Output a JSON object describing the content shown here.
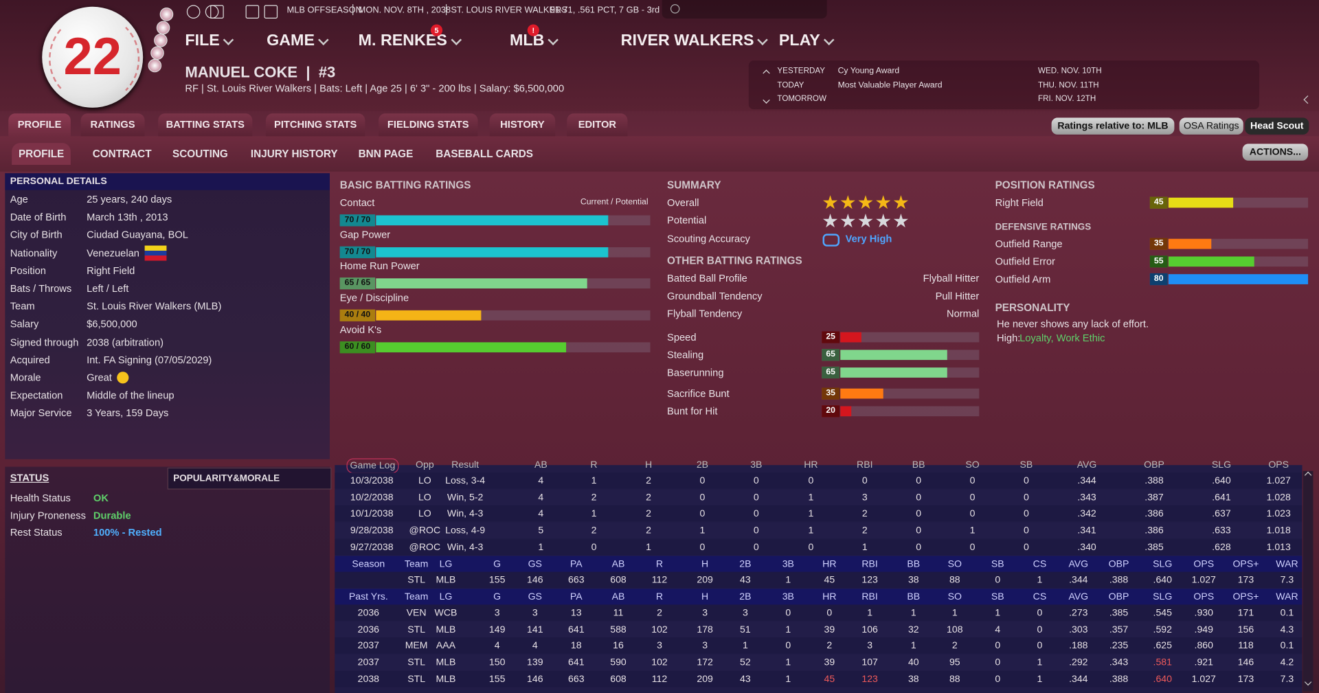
{
  "header": {
    "jersey": "22",
    "status": "MLB OFFSEASON",
    "date": "MON. NOV. 8TH , 2038",
    "team": "ST. LOUIS RIVER WALKERS",
    "record": "91-71, .561 PCT, 7 GB - 3rd",
    "menu": [
      {
        "label": "FILE"
      },
      {
        "label": "GAME"
      },
      {
        "label": "M. RENKES",
        "badge": "5"
      },
      {
        "label": "MLB",
        "badge": "!"
      },
      {
        "label": "RIVER WALKERS"
      },
      {
        "label": "PLAY"
      }
    ],
    "player_name": "MANUEL COKE  |  #3",
    "player_info": "RF | St. Louis River Walkers | Bats: Left | Age 25 | 6' 3\" - 200 lbs | Salary: $6,500,000"
  },
  "calendar": {
    "days": [
      "YESTERDAY",
      "TODAY",
      "TOMORROW"
    ],
    "events": [
      "Cy Young Award",
      "Most Valuable Player Award"
    ],
    "dates": [
      "WED. NOV. 10TH",
      "THU. NOV. 11TH",
      "FRI. NOV. 12TH"
    ]
  },
  "tabs": [
    "PROFILE",
    "RATINGS",
    "BATTING STATS",
    "PITCHING STATS",
    "FIELDING STATS",
    "HISTORY",
    "EDITOR"
  ],
  "subtabs": [
    "PROFILE",
    "CONTRACT",
    "SCOUTING",
    "INJURY HISTORY",
    "BNN PAGE",
    "BASEBALL CARDS"
  ],
  "buttons": {
    "relative": "Ratings relative to: MLB",
    "osa": "OSA Ratings",
    "scout": "Head Scout",
    "actions": "ACTIONS..."
  },
  "personal_details": {
    "title": "PERSONAL DETAILS",
    "rows": [
      [
        "Age",
        "25 years, 240 days"
      ],
      [
        "Date of Birth",
        "March 13th , 2013"
      ],
      [
        "City of Birth",
        "Ciudad Guayana, BOL"
      ],
      [
        "Nationality",
        "Venezuelan"
      ],
      [
        "Position",
        "Right Field"
      ],
      [
        "Bats / Throws",
        "Left / Left"
      ],
      [
        "Team",
        "St. Louis River Walkers (MLB)"
      ],
      [
        "Salary",
        "$6,500,000"
      ],
      [
        "Signed through",
        "2038 (arbitration)"
      ],
      [
        "Acquired",
        "Int. FA Signing (07/05/2029)"
      ],
      [
        "Morale",
        "Great"
      ],
      [
        "Expectation",
        "Middle of the lineup"
      ],
      [
        "Major Service",
        "3 Years, 159 Days"
      ]
    ]
  },
  "rating_scale": [
    15,
    80
  ],
  "batting": {
    "title": "BASIC BATTING RATINGS",
    "legend": "Current / Potential",
    "rows": [
      {
        "label": "Contact",
        "rating": "70 / 70",
        "value": 70,
        "color": "#1cc3cf"
      },
      {
        "label": "Gap Power",
        "rating": "70 / 70",
        "value": 70,
        "color": "#1cc3cf"
      },
      {
        "label": "Home Run Power",
        "rating": "65 / 65",
        "value": 65,
        "color": "#80d68c"
      },
      {
        "label": "Eye / Discipline",
        "rating": "40 / 40",
        "value": 40,
        "color": "#f4b416"
      },
      {
        "label": "Avoid K's",
        "rating": "60 / 60",
        "value": 60,
        "color": "#56cc30"
      }
    ]
  },
  "summary": {
    "title": "SUMMARY",
    "overall_label": "Overall",
    "overall_stars": 5,
    "potential_label": "Potential",
    "potential_stars": 5,
    "accuracy_label": "Scouting Accuracy",
    "accuracy": "Very High"
  },
  "other_batting": {
    "title": "OTHER BATTING RATINGS",
    "rows": [
      [
        "Batted Ball Profile",
        "Flyball Hitter"
      ],
      [
        "Groundball Tendency",
        "Pull Hitter"
      ],
      [
        "Flyball Tendency",
        "Normal"
      ]
    ],
    "bars": [
      {
        "label": "Speed",
        "value": 25,
        "color": "#d4161e"
      },
      {
        "label": "Stealing",
        "value": 65,
        "color": "#80d68c"
      },
      {
        "label": "Baserunning",
        "value": 65,
        "color": "#80d68c"
      },
      {
        "label": "Sacrifice Bunt",
        "value": 35,
        "color": "#ff7a12"
      },
      {
        "label": "Bunt for Hit",
        "value": 20,
        "color": "#d4161e"
      }
    ]
  },
  "position_ratings": {
    "title": "POSITION RATINGS",
    "rows": [
      {
        "label": "Right Field",
        "value": 45,
        "color": "#e6dd16"
      }
    ],
    "defensive_title": "DEFENSIVE RATINGS",
    "defensive": [
      {
        "label": "Outfield Range",
        "value": 35,
        "color": "#ff7a12"
      },
      {
        "label": "Outfield Error",
        "value": 55,
        "color": "#56cc30"
      },
      {
        "label": "Outfield Arm",
        "value": 80,
        "color": "#1e8ef5"
      }
    ]
  },
  "personality": {
    "title": "PERSONALITY",
    "text": "He never shows any lack of effort.",
    "high_label": "High:",
    "high": "Loyalty, Work Ethic"
  },
  "status": {
    "title": "STATUS",
    "tab": "POPULARITY&MORALE",
    "rows": [
      [
        "Health Status",
        "OK"
      ],
      [
        "Injury Proneness",
        "Durable"
      ],
      [
        "Rest Status",
        "100% - Rested"
      ]
    ]
  },
  "game_log": {
    "columns": [
      "Game Log",
      "Opp",
      "Result",
      "AB",
      "R",
      "H",
      "2B",
      "3B",
      "HR",
      "RBI",
      "BB",
      "SO",
      "SB",
      "AVG",
      "OBP",
      "SLG",
      "OPS"
    ],
    "rows": [
      [
        "10/3/2038",
        "LO",
        "Loss, 3-4",
        "4",
        "1",
        "2",
        "0",
        "0",
        "0",
        "0",
        "0",
        "0",
        "0",
        ".344",
        ".388",
        ".640",
        "1.027"
      ],
      [
        "10/2/2038",
        "LO",
        "Win, 5-2",
        "4",
        "2",
        "2",
        "0",
        "0",
        "1",
        "3",
        "0",
        "0",
        "0",
        ".343",
        ".387",
        ".641",
        "1.028"
      ],
      [
        "10/1/2038",
        "LO",
        "Win, 4-3",
        "4",
        "1",
        "2",
        "0",
        "0",
        "1",
        "2",
        "0",
        "0",
        "0",
        ".342",
        ".386",
        ".637",
        "1.023"
      ],
      [
        "9/28/2038",
        "@ROC",
        "Loss, 4-9",
        "5",
        "2",
        "2",
        "1",
        "0",
        "1",
        "2",
        "0",
        "1",
        "0",
        ".341",
        ".386",
        ".633",
        "1.018"
      ],
      [
        "9/27/2038",
        "@ROC",
        "Win, 4-3",
        "1",
        "0",
        "1",
        "0",
        "0",
        "0",
        "1",
        "0",
        "0",
        "0",
        ".340",
        ".385",
        ".628",
        "1.013"
      ]
    ]
  },
  "season": {
    "columns": [
      "Season",
      "Team",
      "LG",
      "G",
      "GS",
      "PA",
      "AB",
      "R",
      "H",
      "2B",
      "3B",
      "HR",
      "RBI",
      "BB",
      "SO",
      "SB",
      "CS",
      "AVG",
      "OBP",
      "SLG",
      "OPS",
      "OPS+",
      "WAR"
    ],
    "rows": [
      [
        null,
        "STL",
        "MLB",
        "155",
        "146",
        "663",
        "608",
        "112",
        "209",
        "43",
        "1",
        "45",
        "123",
        "38",
        "88",
        "0",
        "1",
        ".344",
        ".388",
        ".640",
        "1.027",
        "173",
        "7.3"
      ]
    ]
  },
  "past": {
    "columns": [
      "Past Yrs.",
      "Team",
      "LG",
      "G",
      "GS",
      "PA",
      "AB",
      "R",
      "H",
      "2B",
      "3B",
      "HR",
      "RBI",
      "BB",
      "SO",
      "SB",
      "CS",
      "AVG",
      "OBP",
      "SLG",
      "OPS",
      "OPS+",
      "WAR"
    ],
    "highlight_color": "#ef5a5a",
    "rows": [
      {
        "cells": [
          "2036",
          "VEN",
          "WCB",
          "3",
          "3",
          "13",
          "11",
          "2",
          "3",
          "3",
          "0",
          "0",
          "1",
          "1",
          "1",
          "1",
          "0",
          ".273",
          ".385",
          ".545",
          ".930",
          "171",
          "0.1"
        ],
        "highlight": []
      },
      {
        "cells": [
          "2036",
          "STL",
          "MLB",
          "149",
          "141",
          "641",
          "588",
          "102",
          "178",
          "51",
          "1",
          "39",
          "106",
          "32",
          "108",
          "4",
          "0",
          ".303",
          ".357",
          ".592",
          ".949",
          "156",
          "4.3"
        ],
        "highlight": []
      },
      {
        "cells": [
          "2037",
          "MEM",
          "AAA",
          "4",
          "4",
          "18",
          "16",
          "3",
          "3",
          "1",
          "0",
          "2",
          "3",
          "1",
          "2",
          "0",
          "0",
          ".188",
          ".235",
          ".625",
          ".860",
          "118",
          "0.1"
        ],
        "highlight": []
      },
      {
        "cells": [
          "2037",
          "STL",
          "MLB",
          "150",
          "139",
          "641",
          "590",
          "102",
          "172",
          "52",
          "1",
          "39",
          "107",
          "40",
          "95",
          "0",
          "1",
          ".292",
          ".343",
          ".581",
          ".921",
          "146",
          "4.2"
        ],
        "highlight": [
          19
        ]
      },
      {
        "cells": [
          "2038",
          "STL",
          "MLB",
          "155",
          "146",
          "663",
          "608",
          "112",
          "209",
          "43",
          "1",
          "45",
          "123",
          "38",
          "88",
          "0",
          "1",
          ".344",
          ".388",
          ".640",
          "1.027",
          "173",
          "7.3"
        ],
        "highlight": [
          11,
          12,
          19
        ]
      }
    ]
  }
}
